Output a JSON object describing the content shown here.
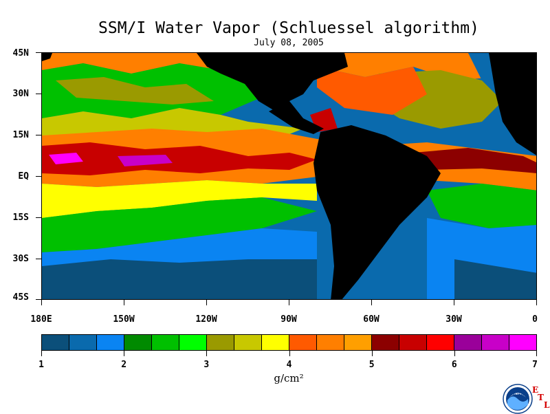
{
  "title": "SSM/I Water Vapor (Schluessel algorithm)",
  "date": "July 08, 2005",
  "map": {
    "lat_labels": [
      "45N",
      "30N",
      "15N",
      "EQ",
      "15S",
      "30S",
      "45S"
    ],
    "lon_labels": [
      "180E",
      "150W",
      "120W",
      "90W",
      "60W",
      "30W",
      "0"
    ],
    "land_color": "#000000",
    "ocean_base_color": "#0a5a8a"
  },
  "colorbar": {
    "colors": [
      "#0b4f7a",
      "#0a6aad",
      "#0a84f2",
      "#008a00",
      "#00c000",
      "#00ff00",
      "#9a9a00",
      "#c8c800",
      "#ffff00",
      "#ff5a00",
      "#ff7f00",
      "#ff9f00",
      "#8c0000",
      "#c80000",
      "#ff0000",
      "#9a009a",
      "#c800c8",
      "#ff00ff"
    ],
    "tick_labels": [
      "1",
      "2",
      "3",
      "4",
      "5",
      "6",
      "7"
    ],
    "range": [
      1,
      7
    ],
    "units": "g/cm²"
  },
  "logo": {
    "text": "NOAA",
    "etl_letters": [
      "E",
      "T",
      "L"
    ]
  }
}
